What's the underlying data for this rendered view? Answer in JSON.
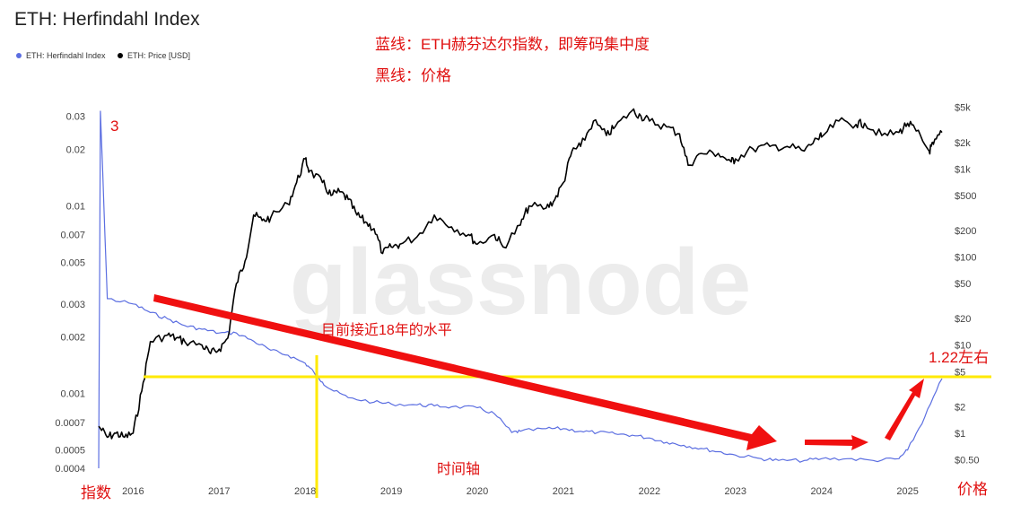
{
  "chart_data": {
    "type": "line",
    "title": "ETH: Herfindahl Index",
    "watermark": "glassnode",
    "legend": {
      "placement": "top-left",
      "items": [
        {
          "label": "ETH: Herfindahl Index",
          "color": "#5b6ee1"
        },
        {
          "label": "ETH: Price [USD]",
          "color": "#000000"
        }
      ]
    },
    "x_axis": {
      "ticks": [
        "2016",
        "2017",
        "2018",
        "2019",
        "2020",
        "2021",
        "2022",
        "2023",
        "2024",
        "2025"
      ],
      "range": [
        2015.6,
        2025.4
      ]
    },
    "y_left": {
      "scale": "log",
      "ticks": [
        "0.03",
        "0.02",
        "0.01",
        "0.007",
        "0.005",
        "0.003",
        "0.002",
        "0.001",
        "0.0007",
        "0.0005",
        "0.0004"
      ],
      "range": [
        0.0004,
        0.034
      ]
    },
    "y_right": {
      "scale": "log",
      "ticks": [
        "$5k",
        "$2k",
        "$1k",
        "$500",
        "$200",
        "$100",
        "$50",
        "$20",
        "$10",
        "$5",
        "$2",
        "$1",
        "$0.50"
      ],
      "range": [
        0.4,
        5200
      ]
    },
    "series": [
      {
        "name": "ETH: Herfindahl Index",
        "axis": "left",
        "color": "#5b6ee1",
        "x": [
          2015.6,
          2015.62,
          2015.7,
          2016.0,
          2016.2,
          2016.4,
          2016.6,
          2016.8,
          2017.0,
          2017.2,
          2017.4,
          2017.6,
          2017.8,
          2018.0,
          2018.1,
          2018.2,
          2018.3,
          2018.5,
          2018.8,
          2019.0,
          2019.3,
          2019.5,
          2019.7,
          2020.0,
          2020.2,
          2020.4,
          2020.5,
          2020.8,
          2021.0,
          2021.2,
          2021.4,
          2021.6,
          2021.8,
          2022.0,
          2022.2,
          2022.4,
          2022.6,
          2022.8,
          2023.0,
          2023.3,
          2023.5,
          2023.8,
          2024.0,
          2024.3,
          2024.6,
          2024.9,
          2025.0,
          2025.2,
          2025.4
        ],
        "values": [
          0.0004,
          0.032,
          0.0032,
          0.003,
          0.0027,
          0.0025,
          0.0023,
          0.0022,
          0.0021,
          0.0021,
          0.0019,
          0.0017,
          0.0016,
          0.00145,
          0.0013,
          0.00115,
          0.00105,
          0.00095,
          0.0009,
          0.00088,
          0.00087,
          0.00086,
          0.00085,
          0.00084,
          0.00078,
          0.00062,
          0.00063,
          0.00065,
          0.00065,
          0.00063,
          0.00062,
          0.00061,
          0.0006,
          0.00058,
          0.00055,
          0.00053,
          0.00051,
          0.00049,
          0.00047,
          0.00045,
          0.00044,
          0.00044,
          0.00045,
          0.00045,
          0.00044,
          0.00045,
          0.0005,
          0.00075,
          0.0012
        ]
      },
      {
        "name": "ETH: Price [USD]",
        "axis": "right",
        "color": "#000000",
        "x": [
          2015.6,
          2015.7,
          2015.8,
          2015.9,
          2016.0,
          2016.1,
          2016.2,
          2016.4,
          2016.5,
          2016.6,
          2016.8,
          2016.9,
          2017.0,
          2017.1,
          2017.2,
          2017.3,
          2017.4,
          2017.5,
          2017.6,
          2017.8,
          2017.9,
          2018.0,
          2018.05,
          2018.2,
          2018.3,
          2018.4,
          2018.5,
          2018.6,
          2018.7,
          2018.8,
          2018.9,
          2019.0,
          2019.1,
          2019.3,
          2019.5,
          2019.7,
          2019.9,
          2020.0,
          2020.2,
          2020.3,
          2020.5,
          2020.6,
          2020.8,
          2020.9,
          2021.0,
          2021.1,
          2021.2,
          2021.35,
          2021.5,
          2021.6,
          2021.8,
          2021.9,
          2022.0,
          2022.2,
          2022.35,
          2022.45,
          2022.6,
          2022.8,
          2022.95,
          2023.0,
          2023.2,
          2023.4,
          2023.6,
          2023.8,
          2023.95,
          2024.0,
          2024.2,
          2024.4,
          2024.5,
          2024.7,
          2024.9,
          2025.0,
          2025.1,
          2025.25,
          2025.3,
          2025.4
        ],
        "values": [
          1.2,
          0.9,
          1.0,
          0.9,
          1.0,
          3.0,
          11.0,
          13.0,
          12.0,
          11.0,
          10.0,
          8.0,
          9.0,
          12.0,
          50.0,
          90.0,
          300.0,
          260.0,
          280.0,
          400.0,
          700.0,
          1300.0,
          950.0,
          700.0,
          500.0,
          550.0,
          450.0,
          300.0,
          250.0,
          210.0,
          110.0,
          130.0,
          140.0,
          170.0,
          300.0,
          220.0,
          180.0,
          140.0,
          180.0,
          130.0,
          230.0,
          380.0,
          360.0,
          450.0,
          700.0,
          1600.0,
          1800.0,
          3500.0,
          2400.0,
          3000.0,
          4600.0,
          4000.0,
          3500.0,
          3000.0,
          2500.0,
          1100.0,
          1500.0,
          1500.0,
          1200.0,
          1300.0,
          1700.0,
          1800.0,
          1800.0,
          1600.0,
          2200.0,
          2300.0,
          3500.0,
          3200.0,
          3300.0,
          2400.0,
          2600.0,
          3300.0,
          2700.0,
          1600.0,
          1900.0,
          2600.0
        ]
      }
    ]
  },
  "annotations": {
    "text_blue_line": "蓝线：ETH赫芬达尔指数，即筹码集中度",
    "text_black_line": "黑线：价格",
    "label_3": "3",
    "label_trend": "目前接近18年的水平",
    "label_value": "1.22左右",
    "label_time_axis": "时间轴",
    "label_index": "指数",
    "label_price": "价格",
    "colors": {
      "red": "#e01010",
      "highlight_line": "#ffea00"
    }
  }
}
